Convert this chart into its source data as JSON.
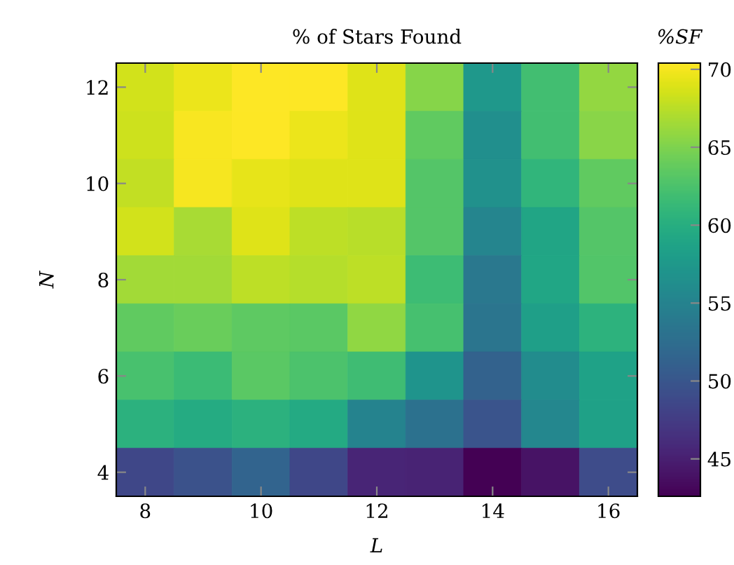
{
  "chart_data": {
    "type": "heatmap",
    "title": "% of Stars Found",
    "xlabel": "L",
    "ylabel": "N",
    "clabel": "%SF",
    "categories": [
      "8",
      null,
      "10",
      null,
      "12",
      null,
      "14",
      null,
      "16"
    ],
    "y_categories": [
      "12",
      null,
      "10",
      null,
      "8",
      null,
      "6",
      null,
      "4"
    ],
    "cells": [
      [
        68.5,
        69.6,
        70.4,
        70.4,
        69,
        65.3,
        57.4,
        62,
        65.9
      ],
      [
        68.3,
        70.1,
        70.3,
        69.6,
        69,
        63.6,
        56.3,
        62,
        65.5
      ],
      [
        67.9,
        70,
        69.4,
        69,
        69,
        63,
        56.6,
        60.8,
        63.6
      ],
      [
        68.5,
        66.8,
        69,
        67.6,
        67.4,
        63,
        55.2,
        58.9,
        63
      ],
      [
        66.5,
        66.5,
        67.6,
        67.3,
        67.6,
        61.7,
        53.7,
        59.1,
        62.8
      ],
      [
        63.6,
        64,
        63.5,
        63.3,
        65.8,
        62.2,
        53.4,
        58.2,
        60.5
      ],
      [
        62.3,
        61.6,
        63.3,
        62.5,
        61.8,
        57,
        51.2,
        56,
        58.6
      ],
      [
        60.4,
        59.6,
        60.4,
        59.5,
        55,
        53,
        49.8,
        55.5,
        58.5
      ],
      [
        48.5,
        49.6,
        51.5,
        48.5,
        45.5,
        45.3,
        42.6,
        44,
        48.9
      ]
    ],
    "clim": [
      42.6,
      70.4
    ],
    "cticks": [
      45,
      50,
      55,
      60,
      65,
      70
    ]
  }
}
